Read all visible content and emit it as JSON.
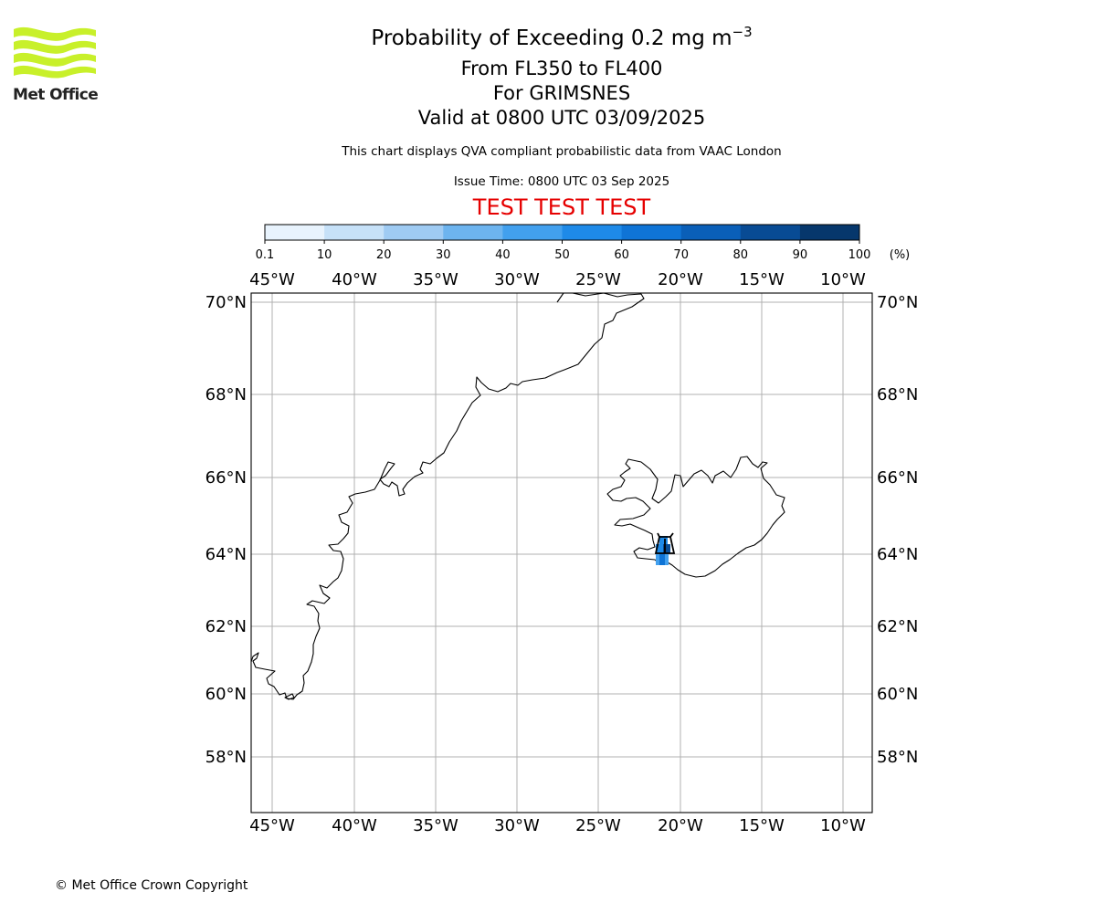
{
  "logo": {
    "text": "Met Office",
    "color": "#c8f02a"
  },
  "title": {
    "main": "Probability of Exceeding 0.2 mg m",
    "exponent": "−3",
    "levels": "From FL350 to FL400",
    "volcano": "For GRIMSNES",
    "valid": "Valid at 0800 UTC 03/09/2025"
  },
  "note": "This chart displays QVA compliant probabilistic data from VAAC London",
  "issue_time": "Issue Time: 0800 UTC 03 Sep 2025",
  "test_banner": "TEST TEST TEST",
  "colorbar": {
    "unit": "(%)",
    "ticks": [
      "0.1",
      "10",
      "20",
      "30",
      "40",
      "50",
      "60",
      "70",
      "80",
      "90",
      "100"
    ],
    "colors": [
      "#e8f3fd",
      "#c6e1f8",
      "#9fcbf3",
      "#6db4ef",
      "#42a0ee",
      "#1e8ae8",
      "#0f74d6",
      "#0a5fb8",
      "#084b94",
      "#06376c",
      "#032346"
    ]
  },
  "map": {
    "lon_labels": [
      "45°W",
      "40°W",
      "35°W",
      "30°W",
      "25°W",
      "20°W",
      "15°W",
      "10°W"
    ],
    "lat_labels": [
      "70°N",
      "68°N",
      "66°N",
      "64°N",
      "62°N",
      "60°N",
      "58°N"
    ],
    "grid": true
  },
  "copyright": "© Met Office Crown Copyright"
}
